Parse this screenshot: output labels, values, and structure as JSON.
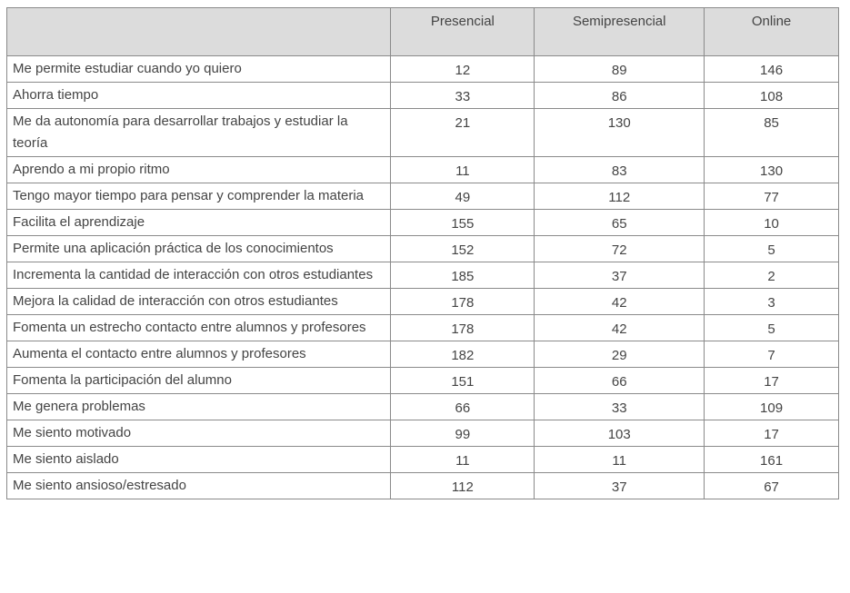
{
  "table": {
    "columns": [
      "Presencial",
      "Semipresencial",
      "Online"
    ],
    "rows": [
      {
        "label": "Me permite estudiar cuando yo quiero",
        "values": [
          12,
          89,
          146
        ]
      },
      {
        "label": "Ahorra tiempo",
        "values": [
          33,
          86,
          108
        ]
      },
      {
        "label": "Me da autonomía para desarrollar trabajos y estudiar la teoría",
        "values": [
          21,
          130,
          85
        ]
      },
      {
        "label": "Aprendo a mi propio ritmo",
        "values": [
          11,
          83,
          130
        ]
      },
      {
        "label": "Tengo mayor tiempo para pensar y comprender la materia",
        "values": [
          49,
          112,
          77
        ]
      },
      {
        "label": "Facilita el aprendizaje",
        "values": [
          155,
          65,
          10
        ]
      },
      {
        "label": "Permite una aplicación práctica de los conocimientos",
        "values": [
          152,
          72,
          5
        ]
      },
      {
        "label": "Incrementa la cantidad de interacción con otros estudiantes",
        "values": [
          185,
          37,
          2
        ]
      },
      {
        "label": "Mejora la calidad de interacción con otros estudiantes",
        "values": [
          178,
          42,
          3
        ]
      },
      {
        "label": "Fomenta un estrecho contacto entre alumnos y profesores",
        "values": [
          178,
          42,
          5
        ]
      },
      {
        "label": "Aumenta el contacto entre alumnos y profesores",
        "values": [
          182,
          29,
          7
        ]
      },
      {
        "label": "Fomenta la participación del alumno",
        "values": [
          151,
          66,
          17
        ]
      },
      {
        "label": "Me genera problemas",
        "values": [
          66,
          33,
          109
        ]
      },
      {
        "label": "Me siento motivado",
        "values": [
          99,
          103,
          17
        ]
      },
      {
        "label": "Me siento aislado",
        "values": [
          11,
          11,
          161
        ]
      },
      {
        "label": "Me siento ansioso/estresado",
        "values": [
          112,
          37,
          67
        ]
      }
    ]
  }
}
